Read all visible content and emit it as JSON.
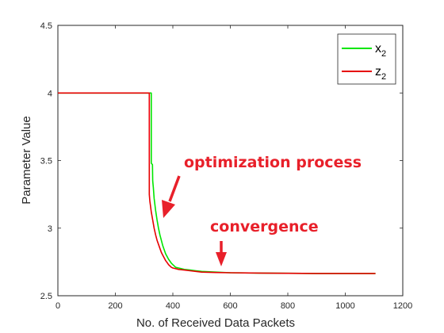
{
  "chart_data": {
    "type": "line",
    "title": "",
    "xlabel": "No. of Received Data Packets",
    "ylabel": "Parameter Value",
    "xlim": [
      0,
      1200
    ],
    "ylim": [
      2.5,
      4.5
    ],
    "xticks": [
      0,
      200,
      400,
      600,
      800,
      1000,
      1200
    ],
    "yticks": [
      2.5,
      3,
      3.5,
      4,
      4.5
    ],
    "xtick_labels": [
      "0",
      "200",
      "400",
      "600",
      "800",
      "1000",
      "1200"
    ],
    "ytick_labels": [
      "2.5",
      "3",
      "3.5",
      "4",
      "4.5"
    ],
    "grid": false,
    "legend_position": "top-right",
    "series": [
      {
        "name": "x_2",
        "legend_base": "x",
        "legend_sub": "2",
        "color": "#00e600",
        "x": [
          0,
          320,
          325,
          325,
          329,
          330,
          332,
          335,
          340,
          345,
          350,
          355,
          360,
          365,
          370,
          375,
          380,
          385,
          390,
          395,
          400,
          410,
          420,
          430,
          440,
          460,
          480,
          500,
          550,
          600,
          700,
          800,
          900,
          1000,
          1105
        ],
        "y": [
          4.0,
          4.0,
          4.0,
          3.48,
          3.47,
          3.35,
          3.3,
          3.22,
          3.13,
          3.06,
          3.0,
          2.95,
          2.91,
          2.87,
          2.84,
          2.81,
          2.79,
          2.77,
          2.755,
          2.74,
          2.73,
          2.71,
          2.705,
          2.7,
          2.695,
          2.69,
          2.685,
          2.68,
          2.675,
          2.67,
          2.668,
          2.666,
          2.665,
          2.665,
          2.665
        ]
      },
      {
        "name": "z_2",
        "legend_base": "z",
        "legend_sub": "2",
        "color": "#e60000",
        "x": [
          0,
          316,
          318,
          318,
          320,
          322,
          325,
          330,
          335,
          340,
          345,
          350,
          355,
          360,
          365,
          370,
          375,
          380,
          385,
          390,
          395,
          400,
          410,
          420,
          440,
          460,
          480,
          500,
          550,
          600,
          700,
          800,
          900,
          1000,
          1105
        ],
        "y": [
          4.0,
          4.0,
          4.0,
          3.25,
          3.2,
          3.17,
          3.12,
          3.06,
          3.0,
          2.95,
          2.91,
          2.88,
          2.85,
          2.82,
          2.8,
          2.78,
          2.76,
          2.745,
          2.73,
          2.72,
          2.71,
          2.705,
          2.7,
          2.695,
          2.69,
          2.685,
          2.68,
          2.675,
          2.672,
          2.67,
          2.668,
          2.666,
          2.665,
          2.665,
          2.665
        ]
      }
    ],
    "annotations": [
      {
        "text": "optimization process",
        "color": "#e8202a"
      },
      {
        "text": "convergence",
        "color": "#e8202a"
      }
    ]
  }
}
